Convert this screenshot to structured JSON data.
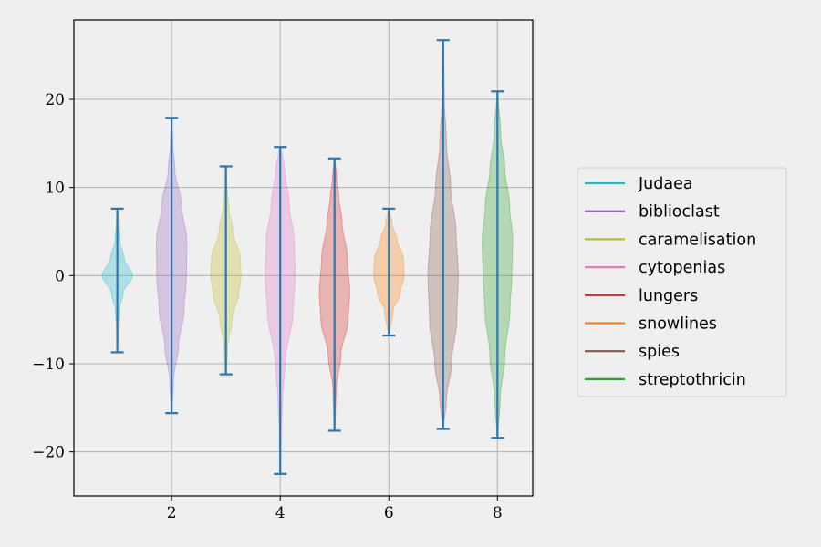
{
  "chart_data": {
    "type": "violin",
    "title": "",
    "xlabel": "",
    "ylabel": "",
    "xlim": [
      0.2,
      8.65
    ],
    "ylim": [
      -25,
      29
    ],
    "xticks": [
      2,
      4,
      6,
      8
    ],
    "yticks": [
      -20,
      -10,
      0,
      10,
      20
    ],
    "xtick_labels": [
      "2",
      "4",
      "6",
      "8"
    ],
    "ytick_labels": [
      "−20",
      "−10",
      "0",
      "10",
      "20"
    ],
    "grid": true,
    "legend_position": "right",
    "extrema_color": "#2a77b4",
    "series": [
      {
        "name": "Judaea",
        "position": 1,
        "min": -8.7,
        "max": 7.6,
        "color": "#17becf",
        "profile": [
          [
            -8.7,
            0.02
          ],
          [
            -6,
            0.05
          ],
          [
            -4,
            0.12
          ],
          [
            -2,
            0.38
          ],
          [
            0,
            1.0
          ],
          [
            2,
            0.45
          ],
          [
            4,
            0.15
          ],
          [
            6,
            0.06
          ],
          [
            7.6,
            0.02
          ]
        ]
      },
      {
        "name": "biblioclast",
        "position": 2,
        "min": -15.6,
        "max": 17.9,
        "color": "#9467bd",
        "profile": [
          [
            -15.6,
            0.03
          ],
          [
            -12,
            0.12
          ],
          [
            -8,
            0.45
          ],
          [
            -4,
            0.82
          ],
          [
            0,
            0.98
          ],
          [
            4,
            1.0
          ],
          [
            8,
            0.65
          ],
          [
            12,
            0.22
          ],
          [
            15,
            0.08
          ],
          [
            17.9,
            0.02
          ]
        ]
      },
      {
        "name": "caramelisation",
        "position": 3,
        "min": -11.2,
        "max": 12.4,
        "color": "#bcbd22",
        "profile": [
          [
            -11.2,
            0.03
          ],
          [
            -8,
            0.12
          ],
          [
            -5,
            0.4
          ],
          [
            -2,
            0.85
          ],
          [
            0,
            1.0
          ],
          [
            2,
            0.95
          ],
          [
            5,
            0.45
          ],
          [
            8,
            0.18
          ],
          [
            10,
            0.07
          ],
          [
            12.4,
            0.02
          ]
        ]
      },
      {
        "name": "cytopenias",
        "position": 4,
        "min": -22.5,
        "max": 14.6,
        "color": "#e377c2",
        "profile": [
          [
            -22.5,
            0.02
          ],
          [
            -18,
            0.06
          ],
          [
            -14,
            0.15
          ],
          [
            -10,
            0.32
          ],
          [
            -4,
            0.85
          ],
          [
            0,
            1.0
          ],
          [
            4,
            0.92
          ],
          [
            8,
            0.6
          ],
          [
            12,
            0.3
          ],
          [
            14.6,
            0.05
          ]
        ]
      },
      {
        "name": "lungers",
        "position": 5,
        "min": -17.6,
        "max": 13.3,
        "color": "#d62728",
        "profile": [
          [
            -17.6,
            0.03
          ],
          [
            -13,
            0.1
          ],
          [
            -9,
            0.42
          ],
          [
            -5,
            0.9
          ],
          [
            -2,
            1.0
          ],
          [
            2,
            0.85
          ],
          [
            6,
            0.5
          ],
          [
            9,
            0.28
          ],
          [
            11,
            0.14
          ],
          [
            13.3,
            0.03
          ]
        ]
      },
      {
        "name": "snowlines",
        "position": 6,
        "min": -6.8,
        "max": 7.6,
        "color": "#ff7f0e",
        "profile": [
          [
            -6.8,
            0.04
          ],
          [
            -4,
            0.28
          ],
          [
            -2,
            0.75
          ],
          [
            0,
            1.0
          ],
          [
            2,
            0.95
          ],
          [
            4,
            0.55
          ],
          [
            6,
            0.2
          ],
          [
            7.6,
            0.03
          ]
        ]
      },
      {
        "name": "spies",
        "position": 7,
        "min": -17.4,
        "max": 26.7,
        "color": "#8c564b",
        "profile": [
          [
            -17.4,
            0.03
          ],
          [
            -14,
            0.22
          ],
          [
            -10,
            0.55
          ],
          [
            -5,
            0.9
          ],
          [
            0,
            1.0
          ],
          [
            5,
            0.85
          ],
          [
            10,
            0.5
          ],
          [
            15,
            0.22
          ],
          [
            20,
            0.08
          ],
          [
            26.7,
            0.02
          ]
        ]
      },
      {
        "name": "streptothricin",
        "position": 8,
        "min": -18.4,
        "max": 20.9,
        "color": "#2ca02c",
        "profile": [
          [
            -18.4,
            0.03
          ],
          [
            -14,
            0.18
          ],
          [
            -9,
            0.5
          ],
          [
            -4,
            0.82
          ],
          [
            0,
            0.95
          ],
          [
            4,
            1.0
          ],
          [
            8,
            0.8
          ],
          [
            12,
            0.5
          ],
          [
            16,
            0.22
          ],
          [
            20.9,
            0.03
          ]
        ]
      }
    ]
  }
}
